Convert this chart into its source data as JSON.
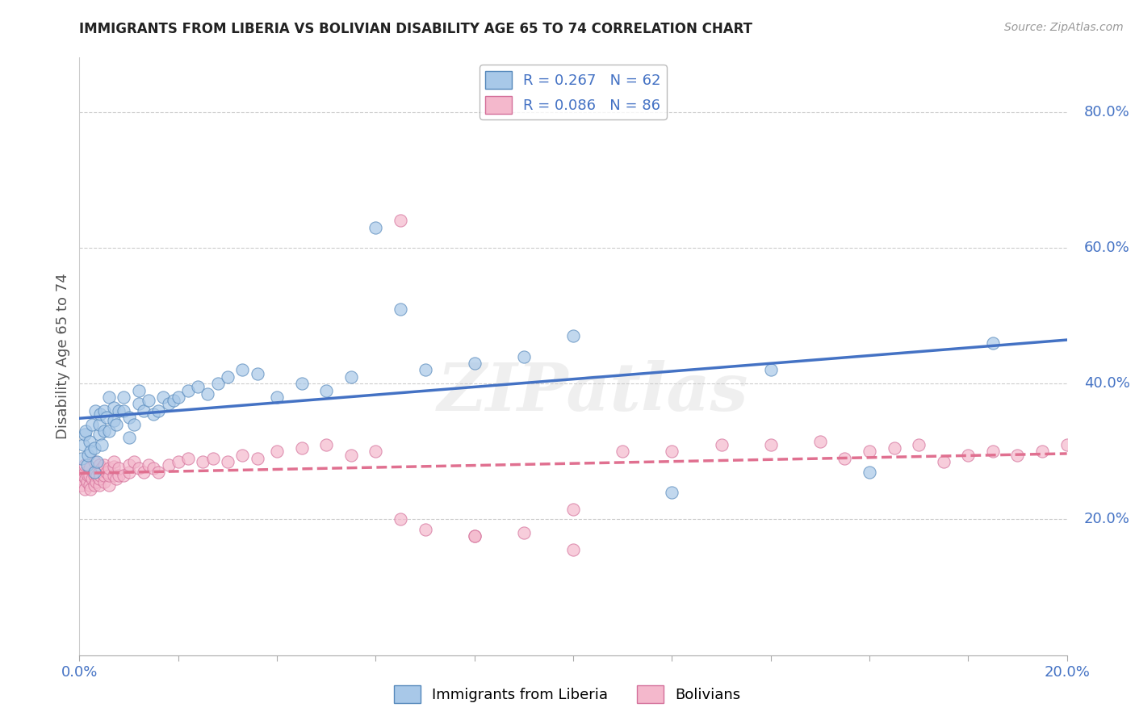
{
  "title": "IMMIGRANTS FROM LIBERIA VS BOLIVIAN DISABILITY AGE 65 TO 74 CORRELATION CHART",
  "source": "Source: ZipAtlas.com",
  "ylabel": "Disability Age 65 to 74",
  "legend_label1": "Immigrants from Liberia",
  "legend_label2": "Bolivians",
  "color_liberia": "#a8c8e8",
  "color_bolivian": "#f4b8cc",
  "color_liberia_line": "#4472c4",
  "color_bolivian_line": "#e07090",
  "watermark": "ZIPatlas",
  "liberia_x": [
    0.0005,
    0.0008,
    0.001,
    0.0012,
    0.0015,
    0.0018,
    0.002,
    0.0022,
    0.0025,
    0.003,
    0.003,
    0.0032,
    0.0035,
    0.004,
    0.004,
    0.0042,
    0.0045,
    0.005,
    0.005,
    0.0055,
    0.006,
    0.006,
    0.007,
    0.007,
    0.0075,
    0.008,
    0.009,
    0.009,
    0.01,
    0.01,
    0.011,
    0.012,
    0.012,
    0.013,
    0.014,
    0.015,
    0.016,
    0.017,
    0.018,
    0.019,
    0.02,
    0.022,
    0.024,
    0.026,
    0.028,
    0.03,
    0.033,
    0.036,
    0.04,
    0.045,
    0.05,
    0.055,
    0.06,
    0.065,
    0.07,
    0.08,
    0.09,
    0.1,
    0.12,
    0.14,
    0.16,
    0.185
  ],
  "liberia_y": [
    0.29,
    0.31,
    0.325,
    0.33,
    0.28,
    0.295,
    0.315,
    0.3,
    0.34,
    0.27,
    0.305,
    0.36,
    0.285,
    0.325,
    0.34,
    0.355,
    0.31,
    0.33,
    0.36,
    0.35,
    0.33,
    0.38,
    0.365,
    0.345,
    0.34,
    0.36,
    0.38,
    0.36,
    0.32,
    0.35,
    0.34,
    0.39,
    0.37,
    0.36,
    0.375,
    0.355,
    0.36,
    0.38,
    0.37,
    0.375,
    0.38,
    0.39,
    0.395,
    0.385,
    0.4,
    0.41,
    0.42,
    0.415,
    0.38,
    0.4,
    0.39,
    0.41,
    0.63,
    0.51,
    0.42,
    0.43,
    0.44,
    0.47,
    0.24,
    0.42,
    0.27,
    0.46
  ],
  "bolivian_x": [
    0.0003,
    0.0005,
    0.0007,
    0.001,
    0.001,
    0.001,
    0.0012,
    0.0015,
    0.0018,
    0.002,
    0.002,
    0.002,
    0.0022,
    0.0025,
    0.003,
    0.003,
    0.003,
    0.003,
    0.0033,
    0.0035,
    0.004,
    0.004,
    0.004,
    0.004,
    0.0042,
    0.0045,
    0.005,
    0.005,
    0.005,
    0.0055,
    0.006,
    0.006,
    0.006,
    0.007,
    0.007,
    0.007,
    0.0075,
    0.008,
    0.008,
    0.009,
    0.01,
    0.01,
    0.011,
    0.012,
    0.013,
    0.014,
    0.015,
    0.016,
    0.018,
    0.02,
    0.022,
    0.025,
    0.027,
    0.03,
    0.033,
    0.036,
    0.04,
    0.045,
    0.05,
    0.055,
    0.06,
    0.065,
    0.07,
    0.08,
    0.09,
    0.1,
    0.11,
    0.12,
    0.13,
    0.14,
    0.15,
    0.155,
    0.16,
    0.165,
    0.17,
    0.175,
    0.18,
    0.185,
    0.19,
    0.195,
    0.2,
    0.065,
    0.08,
    0.1
  ],
  "bolivian_y": [
    0.26,
    0.25,
    0.265,
    0.245,
    0.27,
    0.28,
    0.26,
    0.255,
    0.265,
    0.25,
    0.265,
    0.275,
    0.245,
    0.26,
    0.25,
    0.265,
    0.27,
    0.285,
    0.255,
    0.265,
    0.25,
    0.26,
    0.27,
    0.28,
    0.265,
    0.275,
    0.255,
    0.265,
    0.28,
    0.27,
    0.25,
    0.265,
    0.275,
    0.265,
    0.278,
    0.285,
    0.26,
    0.265,
    0.275,
    0.265,
    0.27,
    0.28,
    0.285,
    0.275,
    0.27,
    0.28,
    0.275,
    0.27,
    0.28,
    0.285,
    0.29,
    0.285,
    0.29,
    0.285,
    0.295,
    0.29,
    0.3,
    0.305,
    0.31,
    0.295,
    0.3,
    0.2,
    0.185,
    0.175,
    0.18,
    0.215,
    0.3,
    0.3,
    0.31,
    0.31,
    0.315,
    0.29,
    0.3,
    0.305,
    0.31,
    0.285,
    0.295,
    0.3,
    0.295,
    0.3,
    0.31,
    0.64,
    0.175,
    0.155
  ],
  "xlim": [
    0.0,
    0.2
  ],
  "ylim": [
    0.0,
    0.88
  ],
  "right_yticks": [
    0.2,
    0.4,
    0.6,
    0.8
  ]
}
